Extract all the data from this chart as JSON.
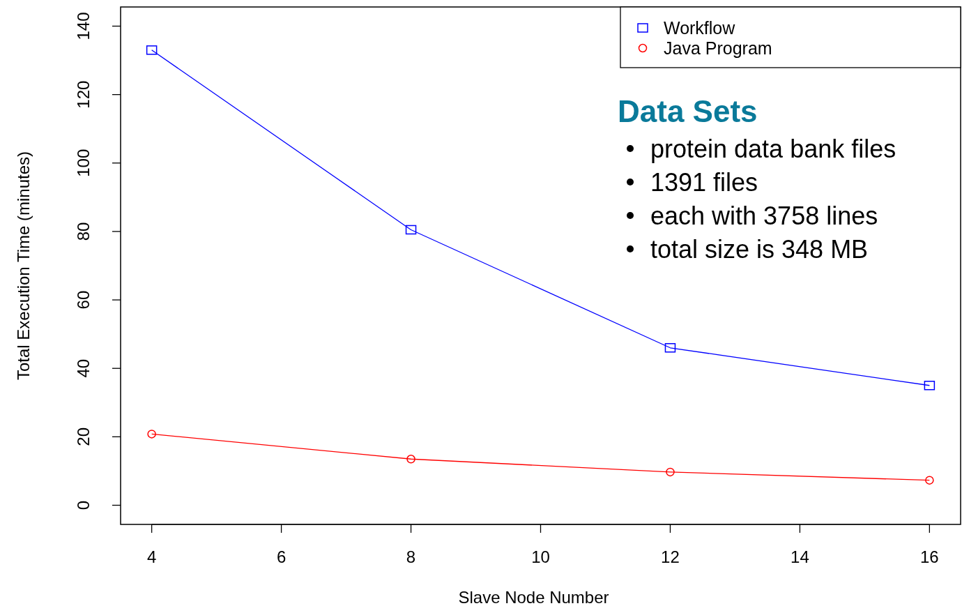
{
  "chart_data": {
    "type": "line",
    "xlabel": "Slave Node Number",
    "ylabel": "Total Execution Time (minutes)",
    "x": [
      4,
      8,
      12,
      16
    ],
    "series": [
      {
        "name": "Workflow",
        "color": "#0000ff",
        "marker": "square",
        "values": [
          133,
          80.5,
          46,
          35
        ]
      },
      {
        "name": "Java Program",
        "color": "#ff0000",
        "marker": "circle",
        "values": [
          20.8,
          13.5,
          9.7,
          7.3
        ]
      }
    ],
    "xlim": [
      3.52,
      16.48
    ],
    "xticks": [
      4,
      6,
      8,
      10,
      12,
      14,
      16
    ],
    "ylim": [
      -5.6,
      145.6
    ],
    "yticks": [
      0,
      20,
      40,
      60,
      80,
      100,
      120,
      140
    ],
    "legend": "top right",
    "annotations": [
      "Data Sets",
      "protein data bank files",
      "1391 files",
      "each with 3758 lines",
      "total size is 348 MB"
    ]
  }
}
